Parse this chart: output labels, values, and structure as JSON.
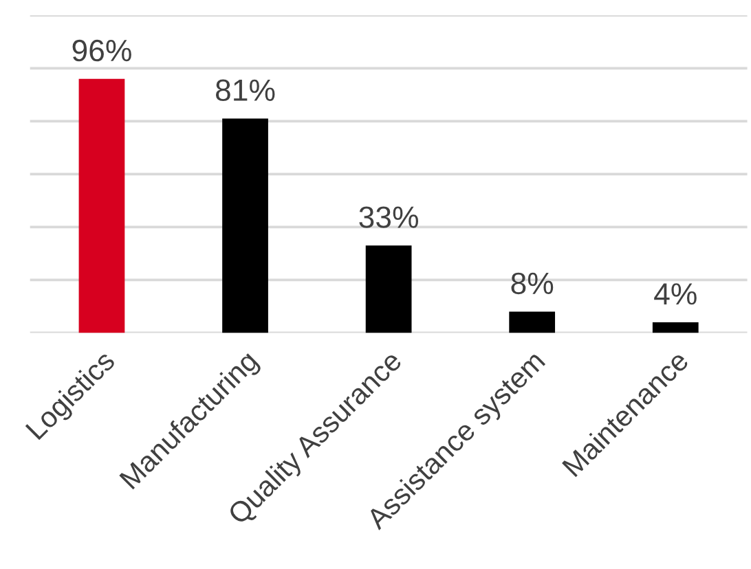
{
  "chart_data": {
    "type": "bar",
    "categories": [
      "Logistics",
      "Manufacturing",
      "Quality Assurance",
      "Assistance system",
      "Maintenance"
    ],
    "values": [
      96,
      81,
      33,
      8,
      4
    ],
    "colors": [
      "#d7001f",
      "#000000",
      "#000000",
      "#000000",
      "#000000"
    ],
    "value_labels": [
      "96%",
      "81%",
      "33%",
      "8%",
      "4%"
    ],
    "ylim": [
      0,
      120
    ],
    "yticks": [
      {
        "value": 0,
        "label": null
      },
      {
        "value": 20,
        "label": null
      },
      {
        "value": 40,
        "label": null
      },
      {
        "value": 60,
        "label": null
      },
      {
        "value": 80,
        "label": null
      },
      {
        "value": 100,
        "label": null
      },
      {
        "value": 120,
        "label": null
      }
    ],
    "grid": "y",
    "tick_labels": "x",
    "legend": false
  }
}
